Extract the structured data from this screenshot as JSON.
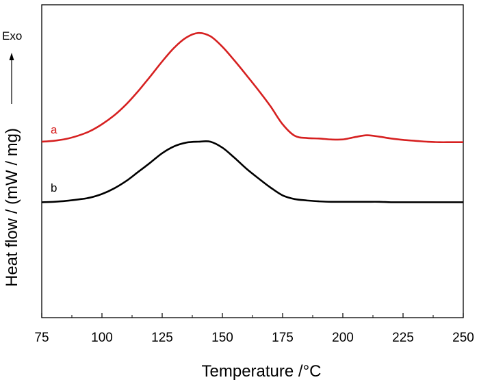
{
  "chart_data": {
    "type": "line",
    "title": "",
    "xlabel": "Temperature  /°C",
    "ylabel": "Heat flow / (mW / mg)",
    "xlim": [
      75,
      250
    ],
    "x_ticks": [
      75,
      100,
      125,
      150,
      175,
      200,
      225,
      250
    ],
    "y_ticks_shown": false,
    "grid": false,
    "legend": "none",
    "annotations": {
      "exo_label": "Exo"
    },
    "series": [
      {
        "name": "a",
        "color": "#d62020",
        "x": [
          75,
          80,
          85,
          90,
          95,
          100,
          105,
          110,
          115,
          120,
          125,
          130,
          135,
          140,
          145,
          150,
          155,
          160,
          165,
          170,
          175,
          180,
          185,
          190,
          195,
          200,
          205,
          210,
          215,
          220,
          225,
          230,
          235,
          240,
          245,
          250
        ],
        "y": [
          0.0,
          0.02,
          0.06,
          0.13,
          0.23,
          0.38,
          0.57,
          0.81,
          1.1,
          1.42,
          1.75,
          2.05,
          2.27,
          2.37,
          2.3,
          2.07,
          1.77,
          1.45,
          1.12,
          0.77,
          0.38,
          0.13,
          0.08,
          0.07,
          0.05,
          0.05,
          0.1,
          0.14,
          0.11,
          0.07,
          0.04,
          0.02,
          0.0,
          -0.01,
          -0.01,
          -0.01
        ]
      },
      {
        "name": "b",
        "color": "#000000",
        "x": [
          75,
          80,
          85,
          90,
          95,
          100,
          105,
          110,
          115,
          120,
          125,
          130,
          135,
          140,
          145,
          150,
          155,
          160,
          165,
          170,
          175,
          180,
          185,
          190,
          195,
          200,
          205,
          210,
          215,
          220,
          225,
          230,
          235,
          240,
          245,
          250
        ],
        "y": [
          -1.32,
          -1.31,
          -1.29,
          -1.26,
          -1.22,
          -1.14,
          -1.02,
          -0.86,
          -0.66,
          -0.46,
          -0.25,
          -0.1,
          -0.02,
          0.0,
          0.0,
          -0.13,
          -0.35,
          -0.59,
          -0.8,
          -1.0,
          -1.17,
          -1.25,
          -1.28,
          -1.3,
          -1.31,
          -1.31,
          -1.31,
          -1.31,
          -1.31,
          -1.32,
          -1.32,
          -1.32,
          -1.32,
          -1.32,
          -1.32,
          -1.32
        ]
      }
    ]
  }
}
